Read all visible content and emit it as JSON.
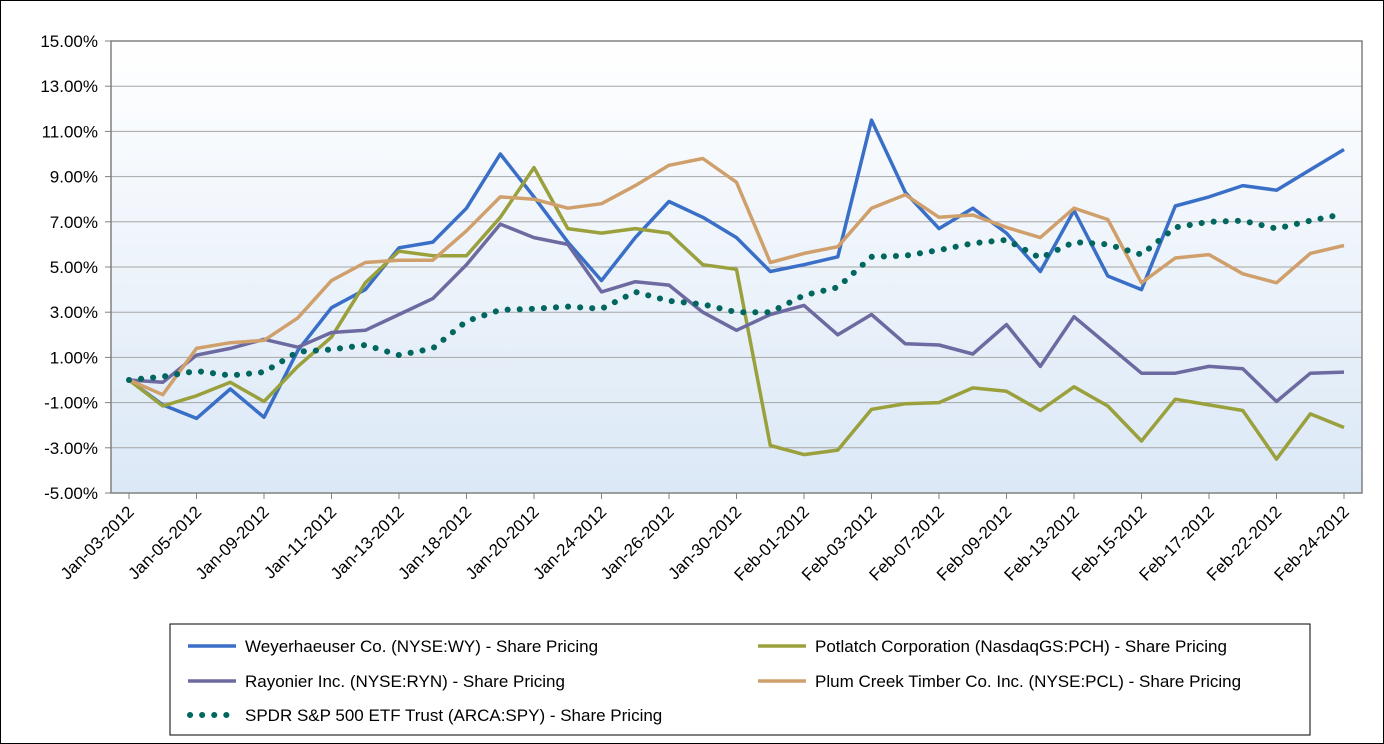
{
  "chart_data": {
    "type": "line",
    "title": "",
    "xlabel": "",
    "ylabel": "",
    "ylim": [
      -5,
      15
    ],
    "yticks": [
      "15.00%",
      "13.00%",
      "11.00%",
      "9.00%",
      "7.00%",
      "5.00%",
      "3.00%",
      "1.00%",
      "-1.00%",
      "-3.00%",
      "-5.00%"
    ],
    "y_tick_values": [
      15,
      13,
      11,
      9,
      7,
      5,
      3,
      1,
      -1,
      -3,
      -5
    ],
    "x_tick_labels": [
      "Jan-03-2012",
      "Jan-05-2012",
      "Jan-09-2012",
      "Jan-11-2012",
      "Jan-13-2012",
      "Jan-18-2012",
      "Jan-20-2012",
      "Jan-24-2012",
      "Jan-26-2012",
      "Jan-30-2012",
      "Feb-01-2012",
      "Feb-03-2012",
      "Feb-07-2012",
      "Feb-09-2012",
      "Feb-13-2012",
      "Feb-15-2012",
      "Feb-17-2012",
      "Feb-22-2012",
      "Feb-24-2012"
    ],
    "x": [
      "Jan-03-2012",
      "Jan-04-2012",
      "Jan-05-2012",
      "Jan-06-2012",
      "Jan-09-2012",
      "Jan-10-2012",
      "Jan-11-2012",
      "Jan-12-2012",
      "Jan-13-2012",
      "Jan-17-2012",
      "Jan-18-2012",
      "Jan-19-2012",
      "Jan-20-2012",
      "Jan-23-2012",
      "Jan-24-2012",
      "Jan-25-2012",
      "Jan-26-2012",
      "Jan-27-2012",
      "Jan-30-2012",
      "Jan-31-2012",
      "Feb-01-2012",
      "Feb-02-2012",
      "Feb-03-2012",
      "Feb-06-2012",
      "Feb-07-2012",
      "Feb-08-2012",
      "Feb-09-2012",
      "Feb-10-2012",
      "Feb-13-2012",
      "Feb-14-2012",
      "Feb-15-2012",
      "Feb-16-2012",
      "Feb-17-2012",
      "Feb-21-2012",
      "Feb-22-2012",
      "Feb-23-2012",
      "Feb-24-2012"
    ],
    "grid": "horizontal",
    "legend_position": "bottom",
    "series": [
      {
        "name": "Weyerhaeuser Co. (NYSE:WY) - Share Pricing",
        "color": "#3a6fc8",
        "style": "solid",
        "values": [
          0.0,
          -1.1,
          -1.7,
          -0.4,
          -1.65,
          1.3,
          3.2,
          4.0,
          5.85,
          6.1,
          7.6,
          10.0,
          8.1,
          6.1,
          4.4,
          6.3,
          7.9,
          7.2,
          6.3,
          4.8,
          5.1,
          5.45,
          11.5,
          8.3,
          6.7,
          7.6,
          6.5,
          4.8,
          7.5,
          4.6,
          4.0,
          7.7,
          8.1,
          8.6,
          8.4,
          9.3,
          10.2
        ]
      },
      {
        "name": "Potlatch Corporation (NasdaqGS:PCH) - Share Pricing",
        "color": "#9aa03c",
        "style": "solid",
        "values": [
          0.0,
          -1.15,
          -0.7,
          -0.1,
          -0.95,
          0.6,
          1.9,
          4.3,
          5.7,
          5.5,
          5.5,
          7.2,
          9.4,
          6.7,
          6.5,
          6.7,
          6.5,
          5.1,
          4.9,
          -2.9,
          -3.3,
          -3.1,
          -1.3,
          -1.05,
          -1.0,
          -0.35,
          -0.5,
          -1.35,
          -0.3,
          -1.15,
          -2.7,
          -0.85,
          -1.1,
          -1.35,
          -3.5,
          -1.5,
          -2.1
        ]
      },
      {
        "name": "Rayonier Inc. (NYSE:RYN) - Share Pricing",
        "color": "#6c6aa0",
        "style": "solid",
        "values": [
          0.0,
          -0.1,
          1.1,
          1.4,
          1.8,
          1.45,
          2.1,
          2.2,
          2.9,
          3.6,
          5.1,
          6.9,
          6.3,
          6.0,
          3.9,
          4.35,
          4.2,
          3.0,
          2.2,
          2.9,
          3.3,
          2.0,
          2.9,
          1.6,
          1.55,
          1.15,
          2.45,
          0.6,
          2.8,
          1.55,
          0.3,
          0.3,
          0.6,
          0.5,
          -0.95,
          0.3,
          0.35
        ]
      },
      {
        "name": "Plum Creek Timber Co. Inc. (NYSE:PCL) - Share Pricing",
        "color": "#d0a06c",
        "style": "solid",
        "values": [
          0.0,
          -0.65,
          1.4,
          1.65,
          1.75,
          2.75,
          4.4,
          5.2,
          5.3,
          5.3,
          6.6,
          8.1,
          8.0,
          7.6,
          7.8,
          8.6,
          9.5,
          9.8,
          8.75,
          5.2,
          5.6,
          5.9,
          7.6,
          8.2,
          7.2,
          7.3,
          6.75,
          6.3,
          7.6,
          7.1,
          4.3,
          5.4,
          5.55,
          4.7,
          4.3,
          5.6,
          5.95
        ]
      },
      {
        "name": "SPDR S&P 500 ETF Trust (ARCA:SPY) - Share Pricing",
        "color": "#00665e",
        "style": "dotted",
        "values": [
          0.0,
          0.15,
          0.4,
          0.2,
          0.35,
          1.25,
          1.35,
          1.55,
          1.1,
          1.4,
          2.6,
          3.1,
          3.15,
          3.25,
          3.15,
          3.9,
          3.5,
          3.35,
          3.0,
          3.0,
          3.75,
          4.1,
          5.45,
          5.5,
          5.75,
          6.05,
          6.2,
          5.4,
          6.1,
          6.0,
          5.55,
          6.75,
          7.0,
          7.05,
          6.7,
          7.05,
          7.35
        ]
      }
    ]
  }
}
